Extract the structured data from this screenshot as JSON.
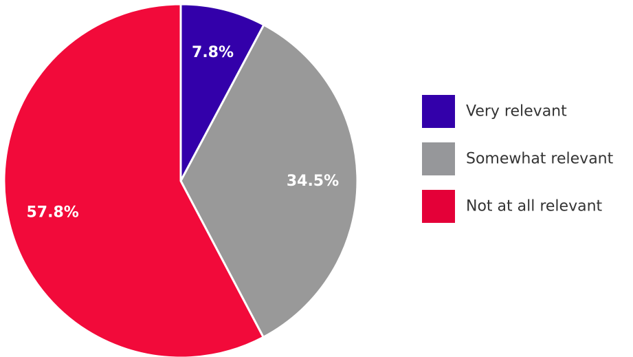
{
  "chart_data": {
    "type": "pie",
    "title": "",
    "categories": [
      "Very relevant",
      "Somewhat relevant",
      "Not at all relevant"
    ],
    "values": [
      7.8,
      34.5,
      57.8
    ],
    "labels": [
      "7.8%",
      "34.5%",
      "57.8%"
    ],
    "colors": [
      "#3300aa",
      "#999999",
      "#f20a3a"
    ],
    "legend": {
      "placement": "right",
      "entries": [
        "Very relevant",
        "Somewhat relevant",
        "Not at all relevant"
      ],
      "colors": [
        "#3300aa",
        "#96979a",
        "#e40038"
      ]
    },
    "start_angle": "12 o'clock",
    "direction": "clockwise"
  }
}
